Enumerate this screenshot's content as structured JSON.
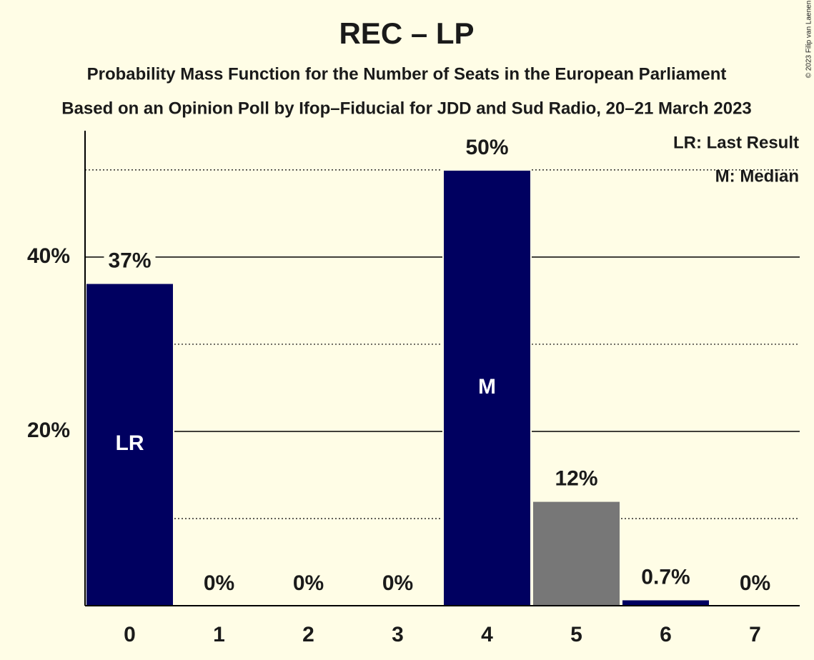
{
  "chart_data": {
    "type": "bar",
    "title": "REC – LP",
    "subtitles": [
      "Probability Mass Function for the Number of Seats in the European Parliament",
      "Based on an Opinion Poll by Ifop–Fiducial for JDD and Sud Radio, 20–21 March 2023"
    ],
    "categories": [
      "0",
      "1",
      "2",
      "3",
      "4",
      "5",
      "6",
      "7"
    ],
    "values": [
      37,
      0,
      0,
      0,
      50,
      12,
      0.7,
      0
    ],
    "value_labels": [
      "37%",
      "0%",
      "0%",
      "0%",
      "50%",
      "12%",
      "0.7%",
      "0%"
    ],
    "bar_labels": [
      "LR",
      null,
      null,
      null,
      "M",
      null,
      null,
      null
    ],
    "colors": [
      "#000060",
      "#000060",
      "#000060",
      "#000060",
      "#000060",
      "#777777",
      "#000060",
      "#000060"
    ],
    "ylim": [
      0,
      54.5
    ],
    "yticks": [
      {
        "value": 20,
        "label": "20%"
      },
      {
        "value": 40,
        "label": "40%"
      }
    ],
    "minor_yticks": [
      10,
      30,
      50
    ],
    "legend": [
      "LR: Last Result",
      "M: Median"
    ],
    "credit": "© 2023 Filip van Laenen"
  }
}
